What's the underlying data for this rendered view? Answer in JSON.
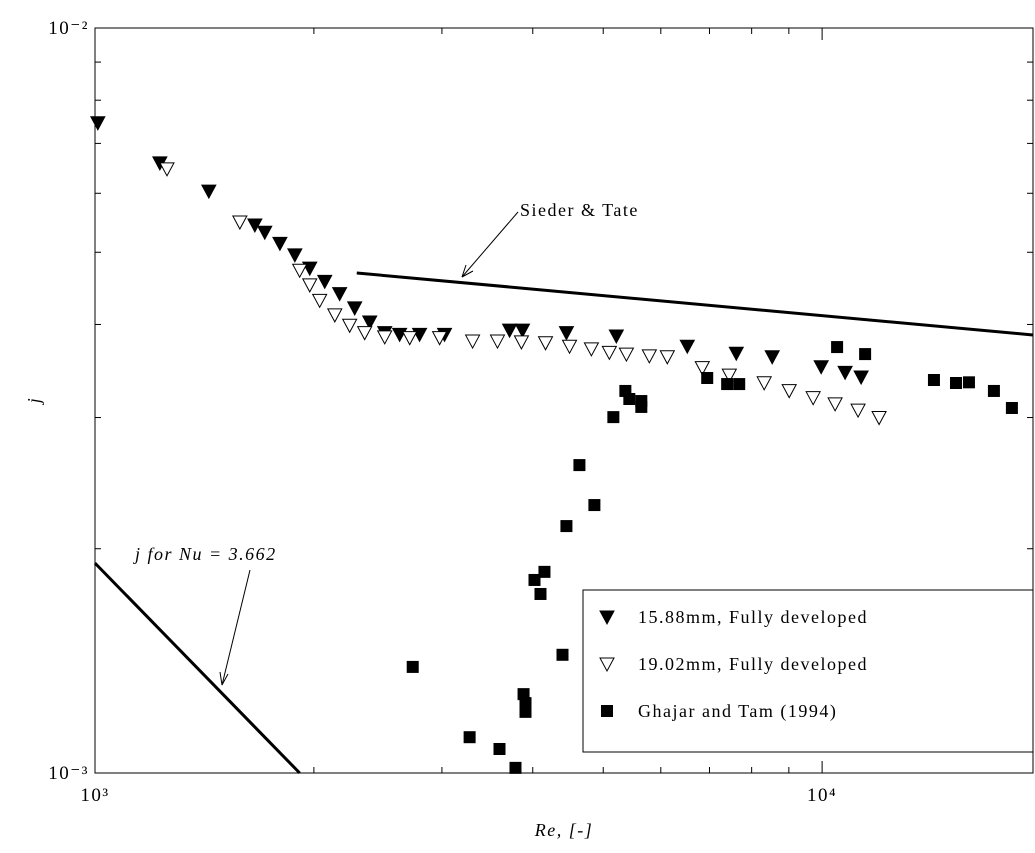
{
  "chart_data": {
    "type": "scatter",
    "x_label": "Re, [-]",
    "y_label": "j",
    "xscale": "log",
    "yscale": "log",
    "xlim": [
      1000,
      19500
    ],
    "ylim": [
      0.001,
      0.01
    ],
    "xticks": [
      {
        "value": 1000,
        "label": "10³"
      },
      {
        "value": 10000,
        "label": "10⁴"
      }
    ],
    "yticks": [
      {
        "value": 0.001,
        "label": "10⁻³"
      },
      {
        "value": 0.01,
        "label": "10⁻²"
      }
    ],
    "xminor": [
      2000,
      3000,
      4000,
      5000,
      6000,
      7000,
      8000,
      9000
    ],
    "yminor": [
      0.002,
      0.003,
      0.004,
      0.005,
      0.006,
      0.007,
      0.008,
      0.009
    ],
    "legend": "lower right",
    "series": [
      {
        "name": "15.88mm, Fully developed",
        "color": "#000000",
        "marker": "triangle-down",
        "marker_fill": "#000000",
        "x": [
          1009,
          1228,
          1434,
          1659,
          1712,
          1796,
          1883,
          1974,
          2070,
          2170,
          2276,
          2387,
          2503,
          2624,
          2795,
          3025,
          3717,
          3872,
          4450,
          5212,
          6525,
          7620,
          8538,
          9970,
          10755,
          11315
        ],
        "values": [
          0.00746,
          0.00659,
          0.00604,
          0.00544,
          0.00532,
          0.00514,
          0.00496,
          0.00476,
          0.00457,
          0.0044,
          0.00421,
          0.00403,
          0.0039,
          0.00388,
          0.00388,
          0.00388,
          0.00393,
          0.00393,
          0.0039,
          0.00386,
          0.00374,
          0.00366,
          0.00362,
          0.00351,
          0.00345,
          0.0034
        ]
      },
      {
        "name": "19.02mm, Fully developed",
        "color": "#000000",
        "marker": "triangle-down",
        "marker_fill": "#ffffff",
        "x": [
          1256,
          1582,
          1912,
          1974,
          2037,
          2137,
          2240,
          2349,
          2503,
          2709,
          2978,
          3306,
          3577,
          3859,
          4165,
          4494,
          4816,
          5098,
          5381,
          5786,
          6125,
          6842,
          7454,
          8324,
          9010,
          9720,
          10420,
          11206,
          11977
        ],
        "values": [
          0.00647,
          0.00549,
          0.00473,
          0.00452,
          0.00431,
          0.00412,
          0.00399,
          0.0039,
          0.00385,
          0.00384,
          0.00384,
          0.0038,
          0.0038,
          0.00379,
          0.00378,
          0.00374,
          0.00371,
          0.00367,
          0.00365,
          0.00363,
          0.00362,
          0.0035,
          0.00342,
          0.00334,
          0.00326,
          0.00319,
          0.00313,
          0.00307,
          0.003
        ]
      },
      {
        "name": "Ghajar and Tam (1994)",
        "color": "#000000",
        "marker": "square",
        "marker_fill": "#000000",
        "x": [
          2735,
          3275,
          3600,
          3787,
          3885,
          3909,
          3909,
          4022,
          4099,
          4151,
          4395,
          4450,
          4637,
          4862,
          5163,
          5363,
          5431,
          5641,
          5641,
          6950,
          7403,
          7691,
          10486,
          11459,
          14250,
          15280,
          15920,
          17230,
          18240
        ],
        "values": [
          0.001388,
          0.001117,
          0.001077,
          0.001016,
          0.001276,
          0.001241,
          0.001208,
          0.001816,
          0.001739,
          0.001862,
          0.001441,
          0.002145,
          0.00259,
          0.002289,
          0.003004,
          0.003257,
          0.003177,
          0.003157,
          0.0031,
          0.00339,
          0.003327,
          0.003327,
          0.00373,
          0.00365,
          0.003369,
          0.003338,
          0.003345,
          0.003257,
          0.00309
        ]
      }
    ],
    "lines": [
      {
        "label": "Sieder & Tate",
        "x": [
          2291,
          19500
        ],
        "values": [
          0.00469,
          0.003872
        ]
      },
      {
        "label": "j for Nu = 3.662",
        "x": [
          1000,
          1912
        ],
        "values": [
          0.001913,
          0.001
        ]
      }
    ]
  }
}
